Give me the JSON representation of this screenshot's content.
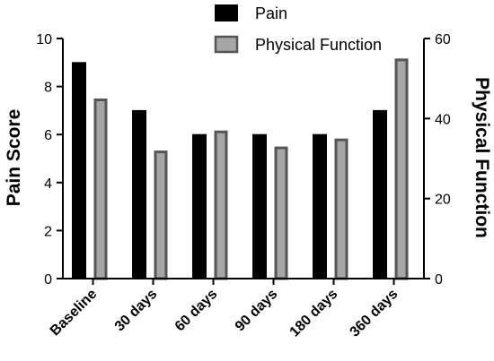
{
  "chart_data": {
    "type": "bar",
    "categories": [
      "Baseline",
      "30 days",
      "60 days",
      "90 days",
      "180 days",
      "360 days"
    ],
    "series": [
      {
        "name": "Pain",
        "axis": "left",
        "values": [
          9,
          7,
          6,
          6,
          6,
          7
        ],
        "color": "#000000",
        "stroke": "#000000"
      },
      {
        "name": "Physical Function",
        "axis": "right",
        "values": [
          45,
          32,
          37,
          33,
          35,
          55
        ],
        "color": "#a6a6a6",
        "stroke": "#555555"
      }
    ],
    "ylabel": "Pain Score",
    "ylim": [
      0,
      10
    ],
    "yticks": [
      0,
      2,
      4,
      6,
      8,
      10
    ],
    "y2label": "Physical Function",
    "y2lim": [
      0,
      60
    ],
    "y2ticks": [
      0,
      20,
      40,
      60
    ],
    "legend_placement": "top-right",
    "grid": false
  }
}
